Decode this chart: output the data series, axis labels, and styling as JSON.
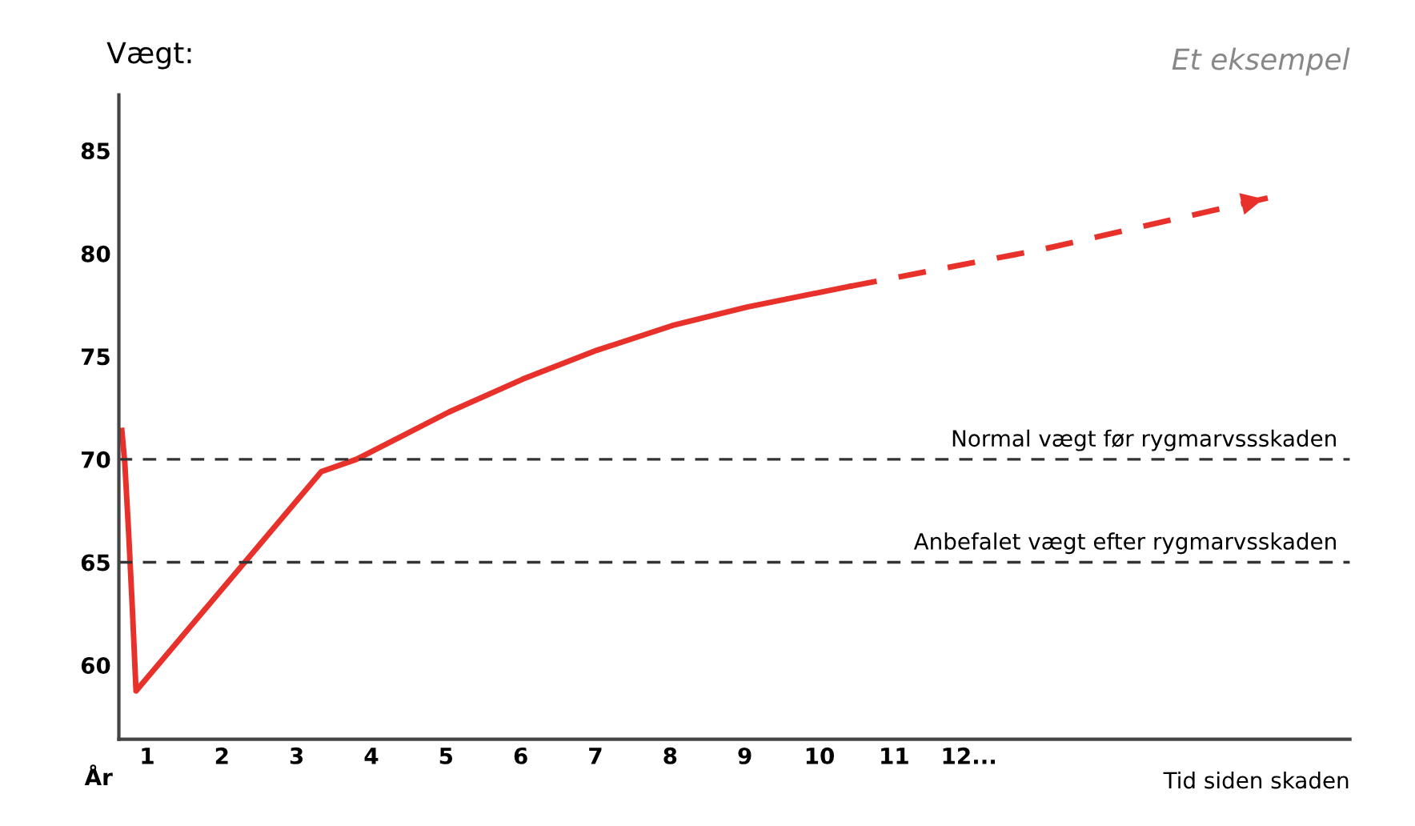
{
  "chart_data": {
    "type": "line",
    "ylabel": "Vægt:",
    "xlabel": "Tid siden skaden",
    "annotations": [
      "År",
      "Et eksempel"
    ],
    "series": [
      {
        "color": "#e8312a",
        "line_style": "solid",
        "x": [
          0.66,
          0.7,
          0.75,
          0.8,
          0.85,
          3.33,
          3.8,
          5.04,
          6.03,
          7.02,
          8.03,
          9.03,
          10.4
        ],
        "values": [
          71.4,
          69.8,
          66.5,
          62.8,
          58.75,
          69.4,
          70.0,
          72.3,
          73.9,
          75.3,
          76.5,
          77.4,
          78.4
        ]
      },
      {
        "color": "#e8312a",
        "line_style": "dashed",
        "x": [
          10.4,
          12.98,
          16.0
        ],
        "values": [
          78.4,
          80.2,
          82.7
        ]
      }
    ],
    "xlim": [
      0.62,
      17.1
    ],
    "ylim": [
      56.4,
      87.7
    ],
    "xticks": [
      1,
      2,
      3,
      4,
      5,
      6,
      7,
      8,
      9,
      10,
      11,
      {
        "value": 12,
        "label": "12..."
      }
    ],
    "yticks": [
      60,
      65,
      70,
      75,
      80,
      85
    ],
    "ref_lines": [
      {
        "axis": "y",
        "value": 70,
        "label": "Normal vægt før rygmarvssskaden",
        "color": "#333333",
        "line_style": "dashed"
      },
      {
        "axis": "y",
        "value": 65,
        "label": "Anbefalet vægt efter rygmarvsskaden",
        "color": "#333333",
        "line_style": "dashed"
      }
    ],
    "grid": false,
    "marker": "none"
  }
}
